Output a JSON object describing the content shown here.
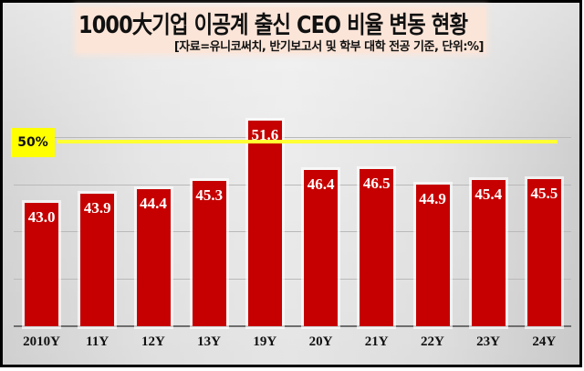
{
  "chart_data": {
    "type": "bar",
    "title": "1000大기업 이공계 출신 CEO 비율 변동 현황",
    "subtitle": "[자료=유니코써치, 반기보고서 및 학부 대학 전공 기준, 단위:%]",
    "categories": [
      "2010Y",
      "11Y",
      "12Y",
      "13Y",
      "19Y",
      "20Y",
      "21Y",
      "22Y",
      "23Y",
      "24Y"
    ],
    "values": [
      43.0,
      43.9,
      44.4,
      45.3,
      51.6,
      46.4,
      46.5,
      44.9,
      45.4,
      45.5
    ],
    "value_labels": [
      "43.0",
      "43.9",
      "44.4",
      "45.3",
      "51.6",
      "46.4",
      "46.5",
      "44.9",
      "45.4",
      "45.5"
    ],
    "xlabel": "",
    "ylabel": "",
    "unit": "%",
    "ylim": [
      30,
      55
    ],
    "grid": true,
    "reference_line": {
      "value": 50,
      "label": "50%",
      "color": "#ffff00"
    },
    "bar_color": "#c60000",
    "legend": null
  },
  "header": {
    "title": "1000大기업 이공계 출신 CEO 비율 변동 현황",
    "subtitle": "[자료=유니코써치, 반기보고서 및 학부 대학 전공 기준, 단위:%]"
  },
  "reference": {
    "label": "50%"
  }
}
